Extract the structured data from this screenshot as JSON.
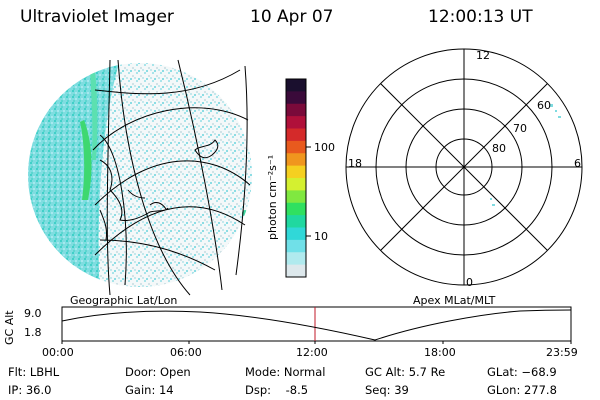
{
  "header": {
    "instrument": "Ultraviolet Imager",
    "date": "10 Apr 07",
    "time": "12:00:13 UT"
  },
  "colorbar": {
    "label": "photon cm⁻²s⁻¹",
    "ticks": [
      "100",
      "10"
    ],
    "colors": [
      "#1a0f2e",
      "#3a0a3a",
      "#7a0a3a",
      "#b0103a",
      "#d42a2a",
      "#e85a1e",
      "#f0961e",
      "#f5d020",
      "#d4f030",
      "#80e840",
      "#30e060",
      "#20d8a0",
      "#30d8d8",
      "#70e0e8",
      "#b0eaee",
      "#dde8ec"
    ]
  },
  "left_map": {
    "caption": "Geographic Lat/Lon"
  },
  "polar_plot": {
    "caption": "Apex MLat/MLT",
    "mlt_labels": [
      "12",
      "18",
      "6",
      "0"
    ],
    "lat_labels": [
      "60",
      "70",
      "80"
    ]
  },
  "altitude_plot": {
    "ylabel": "GC Alt",
    "yticks": [
      "9.0",
      "1.8"
    ],
    "xticks": [
      "00:00",
      "06:00",
      "12:00",
      "18:00",
      "23:59"
    ]
  },
  "info": {
    "filter": "Flt: LBHL",
    "ip": "IP: 36.0",
    "door": "Door: Open",
    "gain": "Gain: 14",
    "mode": "Mode: Normal",
    "dsp": "Dsp:    -8.5",
    "gc_alt": "GC Alt: 5.7 Re",
    "seq": "Seq: 39",
    "glat": "GLat: −68.9",
    "glon": "GLon: 277.8"
  }
}
